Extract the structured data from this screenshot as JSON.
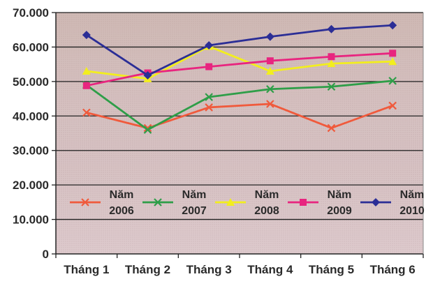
{
  "chart_data": {
    "type": "line",
    "categories": [
      "Tháng 1",
      "Tháng 2",
      "Tháng 3",
      "Tháng 4",
      "Tháng 5",
      "Tháng 6"
    ],
    "ylim": [
      0,
      70000
    ],
    "yticks": [
      {
        "value": 0,
        "label": "0"
      },
      {
        "value": 10000,
        "label": "10.000"
      },
      {
        "value": 20000,
        "label": "20.000"
      },
      {
        "value": 30000,
        "label": "30.000"
      },
      {
        "value": 40000,
        "label": "40.000"
      },
      {
        "value": 50000,
        "label": "50.000"
      },
      {
        "value": 60000,
        "label": "60.000"
      },
      {
        "value": 70000,
        "label": "70.000"
      }
    ],
    "grid": true,
    "legend_position": "bottom-inside",
    "plot_background": "#d8c4c4",
    "series": [
      {
        "name_line1": "Năm",
        "name_line2": "2006",
        "color": "#f05a3c",
        "marker": "x",
        "values": [
          41000,
          36500,
          42500,
          43500,
          36500,
          43000
        ]
      },
      {
        "name_line1": "Năm",
        "name_line2": "2007",
        "color": "#2e9e48",
        "marker": "x",
        "values": [
          49000,
          36000,
          45500,
          47800,
          48500,
          50200
        ]
      },
      {
        "name_line1": "Năm",
        "name_line2": "2008",
        "color": "#f2ee1e",
        "marker": "triangle",
        "values": [
          53000,
          50800,
          60200,
          53000,
          55200,
          55800
        ]
      },
      {
        "name_line1": "Năm",
        "name_line2": "2009",
        "color": "#e8257f",
        "marker": "square",
        "values": [
          48800,
          52500,
          54300,
          56000,
          57200,
          58200
        ]
      },
      {
        "name_line1": "Năm",
        "name_line2": "2010",
        "color": "#2b2e96",
        "marker": "diamond",
        "values": [
          63500,
          51800,
          60500,
          63000,
          65200,
          66300
        ]
      }
    ]
  }
}
